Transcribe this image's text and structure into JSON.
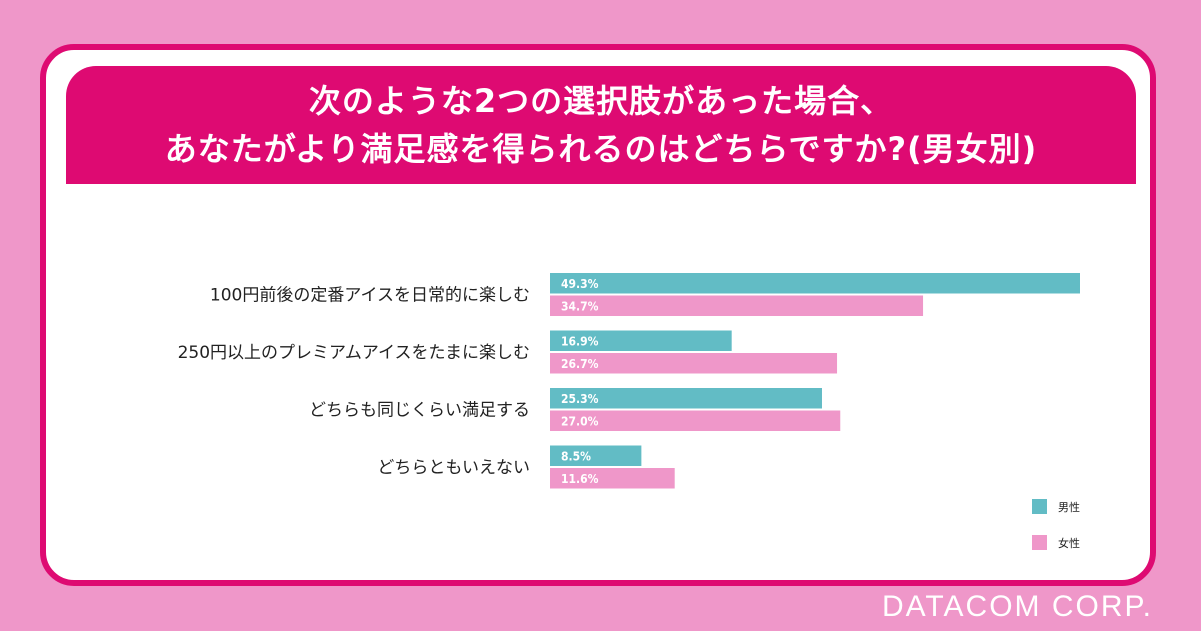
{
  "title": {
    "line1": "次のような2つの選択肢があった場合、",
    "line2": "あなたがより満足感を得られるのはどちらですか?(男女別)"
  },
  "chart_data": {
    "type": "bar",
    "orientation": "horizontal",
    "categories": [
      "100円前後の定番アイスを日常的に楽しむ",
      "250円以上のプレミアムアイスをたまに楽しむ",
      "どちらも同じくらい満足する",
      "どちらともいえない"
    ],
    "series": [
      {
        "name": "男性",
        "values": [
          49.3,
          16.9,
          25.3,
          8.5
        ],
        "labels": [
          "49.3%",
          "16.9%",
          "25.3%",
          "8.5%"
        ],
        "color": "#62bcc5"
      },
      {
        "name": "女性",
        "values": [
          34.7,
          26.7,
          27.0,
          11.6
        ],
        "labels": [
          "34.7%",
          "26.7%",
          "27.0%",
          "11.6%"
        ],
        "color": "#ef97c9"
      }
    ],
    "xlim": [
      0,
      49.3
    ],
    "legend_position": "bottom-right",
    "grid": false
  },
  "colors": {
    "background": "#ef97c9",
    "accent": "#de0a72",
    "male": "#62bcc5",
    "female": "#ef97c9"
  },
  "footer": {
    "brand": "DATACOM CORP."
  }
}
